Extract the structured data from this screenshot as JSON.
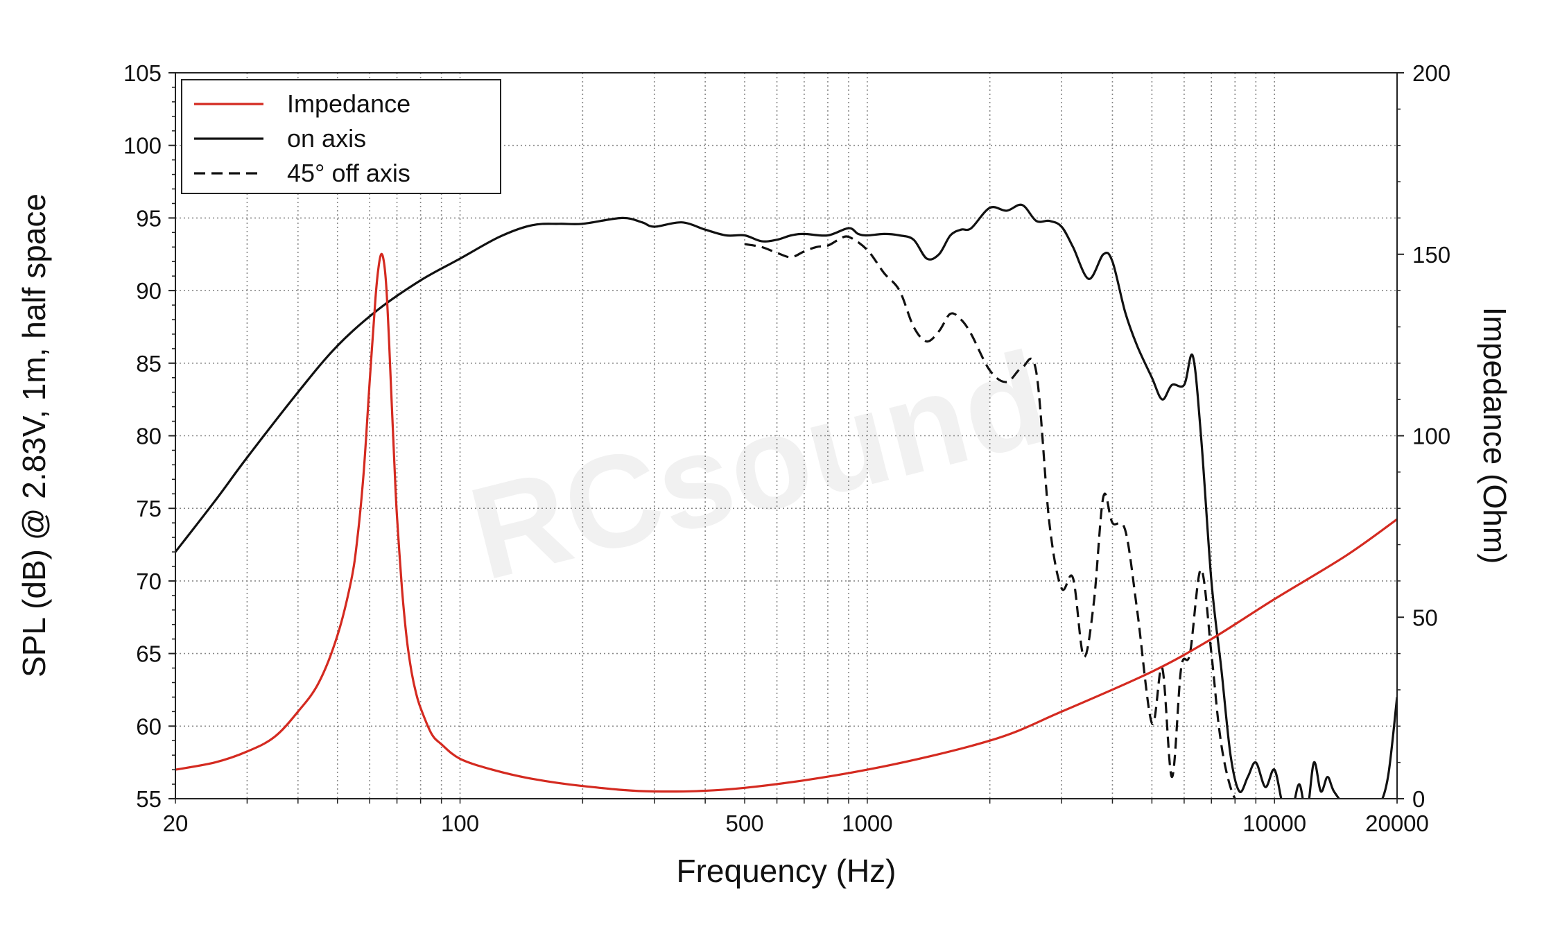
{
  "watermark": "RCsound",
  "chart_data": {
    "type": "line",
    "title": "",
    "xlabel": "Frequency (Hz)",
    "ylabel": "SPL (dB) @ 2.83V, 1m, half space",
    "y2label": "Impedance (Ohm)",
    "xscale": "log",
    "xlim": [
      20,
      20000
    ],
    "ylim": [
      55,
      105
    ],
    "y2lim": [
      0,
      200
    ],
    "grid": true,
    "legend_position": "top-left",
    "x_ticks": [
      "20",
      "100",
      "500",
      "1000",
      "10000",
      "20000"
    ],
    "y_ticks": [
      "105",
      "100",
      "95",
      "90",
      "85",
      "80",
      "75",
      "70",
      "65",
      "60",
      "55"
    ],
    "y2_ticks": [
      "200",
      "150",
      "100",
      "50",
      "0"
    ],
    "colors": {
      "impedance": "#d42a20",
      "spl": "#111111"
    },
    "series": [
      {
        "name": "Impedance",
        "axis": "right",
        "style": "solid",
        "x": [
          20,
          25,
          30,
          35,
          40,
          45,
          50,
          54,
          56,
          58,
          60,
          62,
          63,
          64,
          65,
          66,
          67,
          68,
          69,
          70,
          72,
          74,
          76,
          78,
          80,
          85,
          90,
          100,
          120,
          150,
          200,
          300,
          500,
          1000,
          2000,
          3000,
          5000,
          7000,
          10000,
          15000,
          20000
        ],
        "values": [
          8,
          10,
          13,
          17,
          24,
          32,
          45,
          60,
          72,
          90,
          115,
          138,
          146,
          150,
          148,
          140,
          125,
          108,
          92,
          78,
          58,
          44,
          35,
          29,
          25,
          18,
          15,
          11,
          8,
          5.5,
          3.5,
          2,
          3,
          8,
          16,
          24,
          35,
          44,
          55,
          67,
          77
        ]
      },
      {
        "name": "on axis",
        "axis": "left",
        "style": "solid",
        "x": [
          20,
          25,
          30,
          40,
          50,
          63,
          80,
          100,
          125,
          150,
          175,
          200,
          250,
          280,
          300,
          350,
          400,
          450,
          500,
          550,
          600,
          650,
          700,
          800,
          900,
          950,
          1000,
          1100,
          1200,
          1300,
          1400,
          1500,
          1600,
          1700,
          1800,
          2000,
          2200,
          2400,
          2600,
          2800,
          3000,
          3200,
          3500,
          3800,
          4000,
          4300,
          4600,
          5000,
          5300,
          5600,
          6000,
          6300,
          6600,
          7000,
          7400,
          7800,
          8200,
          8600,
          9000,
          9500,
          10000,
          10500,
          11000,
          11500,
          12000,
          12500,
          13000,
          13500,
          14000,
          15000,
          16000,
          17000,
          18000,
          19000,
          20000
        ],
        "values": [
          72,
          75.5,
          78.5,
          83,
          86.2,
          88.7,
          90.7,
          92.2,
          93.7,
          94.5,
          94.6,
          94.6,
          95,
          94.7,
          94.4,
          94.7,
          94.2,
          93.8,
          93.8,
          93.4,
          93.5,
          93.8,
          93.9,
          93.8,
          94.3,
          93.9,
          93.8,
          93.9,
          93.8,
          93.5,
          92.2,
          92.5,
          93.8,
          94.2,
          94.3,
          95.7,
          95.5,
          95.9,
          94.8,
          94.8,
          94.4,
          93,
          90.8,
          92.5,
          92,
          88.5,
          86.2,
          84,
          82.5,
          83.5,
          83.5,
          85.5,
          80,
          70,
          64,
          58,
          55.5,
          56.5,
          57.5,
          55.8,
          57,
          54.5,
          54,
          56,
          54,
          57.5,
          55.5,
          56.5,
          55.5,
          54.5,
          54.5,
          54.5,
          54.5,
          56.5,
          62
        ]
      },
      {
        "name": "45° off axis",
        "axis": "left",
        "style": "dashed",
        "x": [
          500,
          550,
          600,
          650,
          700,
          750,
          800,
          850,
          900,
          1000,
          1100,
          1200,
          1300,
          1400,
          1500,
          1600,
          1700,
          1800,
          2000,
          2200,
          2400,
          2600,
          2800,
          3000,
          3200,
          3400,
          3600,
          3800,
          4000,
          4300,
          4600,
          5000,
          5300,
          5600,
          5900,
          6200,
          6600,
          7000,
          7300,
          7600,
          8000,
          8500
        ],
        "values": [
          93.2,
          93,
          92.6,
          92.3,
          92.7,
          93,
          93.1,
          93.5,
          93.7,
          92.8,
          91.2,
          90,
          87.5,
          86.5,
          87.2,
          88.4,
          88,
          87,
          84.5,
          83.7,
          84.7,
          84.4,
          74,
          69.5,
          70.2,
          64.8,
          68.5,
          75.8,
          74,
          73.5,
          68,
          60.2,
          64,
          56.5,
          64,
          65,
          70.8,
          65,
          60,
          57,
          55,
          54.5
        ]
      }
    ]
  }
}
